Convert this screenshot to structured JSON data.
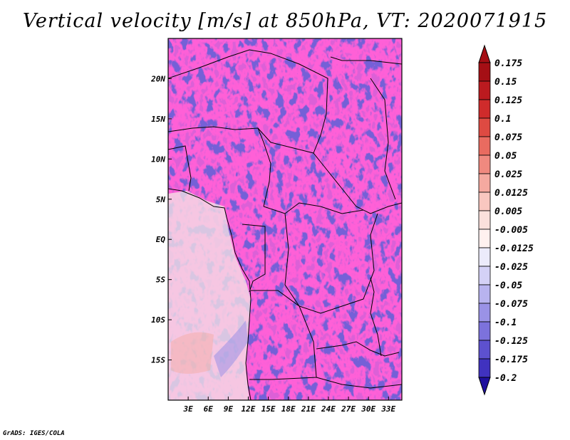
{
  "chart_data": {
    "type": "heatmap",
    "title": "Vertical velocity [m/s] at 850hPa, VT: 2020071915",
    "variable": "vertical velocity",
    "units": "m/s",
    "level": "850hPa",
    "valid_time": "2020071915",
    "lon_range": [
      0,
      35
    ],
    "lat_range": [
      -20,
      25
    ],
    "x_ticks": [
      {
        "value": 3,
        "label": "3E"
      },
      {
        "value": 6,
        "label": "6E"
      },
      {
        "value": 9,
        "label": "9E"
      },
      {
        "value": 12,
        "label": "12E"
      },
      {
        "value": 15,
        "label": "15E"
      },
      {
        "value": 18,
        "label": "18E"
      },
      {
        "value": 21,
        "label": "21E"
      },
      {
        "value": 24,
        "label": "24E"
      },
      {
        "value": 27,
        "label": "27E"
      },
      {
        "value": 30,
        "label": "30E"
      },
      {
        "value": 33,
        "label": "33E"
      }
    ],
    "y_ticks": [
      {
        "value": 20,
        "label": "20N"
      },
      {
        "value": 15,
        "label": "15N"
      },
      {
        "value": 10,
        "label": "10N"
      },
      {
        "value": 5,
        "label": "5N"
      },
      {
        "value": 0,
        "label": "EQ"
      },
      {
        "value": -5,
        "label": "5S"
      },
      {
        "value": -10,
        "label": "10S"
      },
      {
        "value": -15,
        "label": "15S"
      }
    ],
    "colorbar": {
      "levels": [
        {
          "label": "0.175",
          "color": "#a50f15"
        },
        {
          "label": "0.15",
          "color": "#bb1a1f"
        },
        {
          "label": "0.125",
          "color": "#cf2b2b"
        },
        {
          "label": "0.1",
          "color": "#de4a42"
        },
        {
          "label": "0.075",
          "color": "#e96b60"
        },
        {
          "label": "0.05",
          "color": "#f0897f"
        },
        {
          "label": "0.025",
          "color": "#f5a9a0"
        },
        {
          "label": "0.0125",
          "color": "#f9c7c0"
        },
        {
          "label": "0.005",
          "color": "#fbe0dc"
        },
        {
          "label": "-0.005",
          "color": "#fff1ef"
        },
        {
          "label": "-0.0125",
          "color": "#ecebfb"
        },
        {
          "label": "-0.025",
          "color": "#d4d1f6"
        },
        {
          "label": "-0.05",
          "color": "#b8b3ef"
        },
        {
          "label": "-0.075",
          "color": "#9a92e6"
        },
        {
          "label": "-0.1",
          "color": "#7c72dc"
        },
        {
          "label": "-0.125",
          "color": "#5d51cf"
        },
        {
          "label": "-0.175",
          "color": "#4032bf"
        },
        {
          "label": "-0.2",
          "color": "#2a1aaa"
        }
      ],
      "over_color": "#a50f15",
      "under_color": "#1f0f9e"
    }
  },
  "credit": "GrADS: IGES/COLA"
}
